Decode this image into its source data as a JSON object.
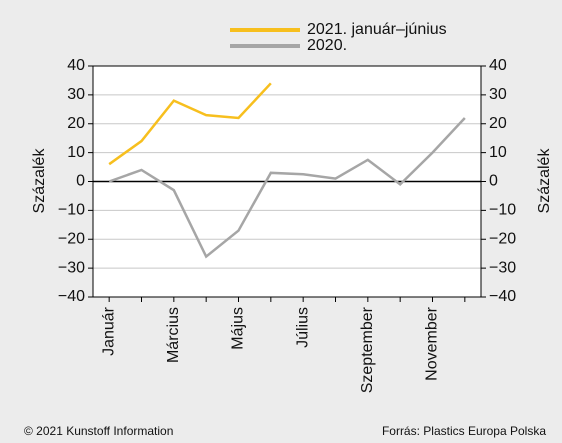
{
  "chart_data": {
    "type": "line",
    "categories": [
      "Január",
      null,
      "Március",
      null,
      "Május",
      null,
      "Július",
      null,
      "Szeptember",
      null,
      "November",
      null
    ],
    "series": [
      {
        "name": "2021. január–június",
        "color": "#f7bf1e",
        "values": [
          6,
          14,
          28,
          23,
          22,
          34,
          null,
          null,
          null,
          null,
          null,
          null
        ]
      },
      {
        "name": "2020.",
        "color": "#a6a6a6",
        "values": [
          0,
          4,
          -3,
          -26,
          -17,
          3,
          2.5,
          1,
          7.5,
          -1,
          10,
          22
        ]
      }
    ],
    "ylabel": "Százalék",
    "ylim": [
      -40,
      40
    ],
    "yticks": [
      {
        "value": -40,
        "label": "−40"
      },
      {
        "value": -30,
        "label": "−30"
      },
      {
        "value": -20,
        "label": "−20"
      },
      {
        "value": -10,
        "label": "−10"
      },
      0,
      10,
      20,
      30,
      40
    ],
    "grid": true,
    "legend": "top",
    "footer_left": "© 2021 Kunstoff Information",
    "footer_right": "Forrás: Plastics Europa Polska"
  }
}
